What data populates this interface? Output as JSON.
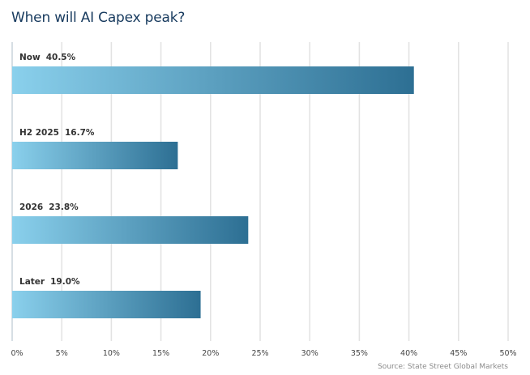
{
  "chart_data": {
    "type": "bar",
    "orientation": "horizontal",
    "title": "When will AI Capex peak?",
    "categories": [
      "Now",
      "H2 2025",
      "2026",
      "Later"
    ],
    "values": [
      40.5,
      16.7,
      23.8,
      19.0
    ],
    "data_labels": [
      "40.5%",
      "16.7%",
      "23.8%",
      "19.0%"
    ],
    "xlim": [
      0,
      50
    ],
    "xticks": [
      "0%",
      "5%",
      "10%",
      "15%",
      "20%",
      "25%",
      "30%",
      "35%",
      "40%",
      "45%",
      "50%"
    ],
    "grid": true,
    "source": "Source: State Street Global Markets",
    "colors": {
      "bar_start": "#8ad0ec",
      "bar_end": "#2d6f93",
      "title": "#173a5e",
      "grid": "#e2e2e2"
    }
  }
}
